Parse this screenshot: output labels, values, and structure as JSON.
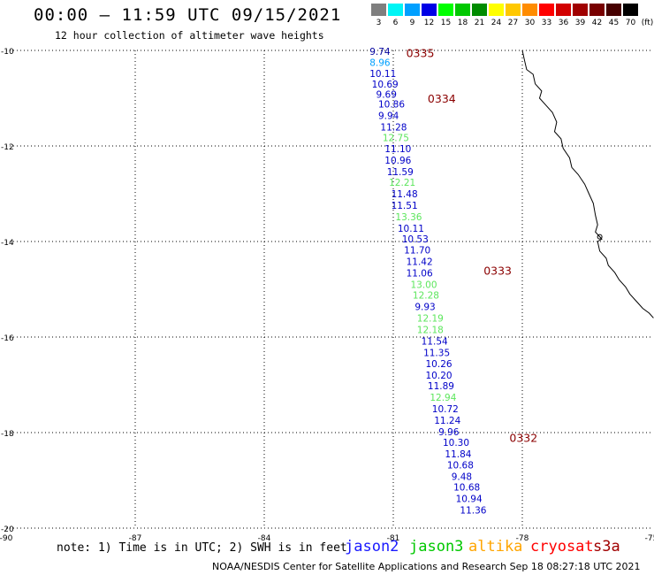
{
  "title": "00:00 – 11:59 UTC 09/15/2021",
  "subtitle": "12 hour collection of altimeter wave heights",
  "color_scale": {
    "labels": [
      "3",
      "6",
      "9",
      "12",
      "15",
      "18",
      "21",
      "24",
      "27",
      "30",
      "33",
      "36",
      "39",
      "42",
      "45",
      "70",
      "(ft)"
    ],
    "colors": [
      "#7f7f7f",
      "#00f5f5",
      "#00a0ff",
      "#0000e6",
      "#00ff00",
      "#00c800",
      "#008c00",
      "#ffff00",
      "#ffc800",
      "#ff8c00",
      "#ff0000",
      "#d20000",
      "#a00000",
      "#780000",
      "#460000",
      "#000000"
    ]
  },
  "axes": {
    "lat_labels": [
      "-10",
      "-12",
      "-14",
      "-16",
      "-18",
      "-20"
    ],
    "lon_labels": [
      "-90",
      "-87",
      "-84",
      "-81",
      "-78",
      "-75"
    ],
    "lat_range": [
      -20,
      -10
    ],
    "lon_range": [
      -90,
      -75
    ]
  },
  "passes": [
    {
      "label": "0335",
      "lon": -80.7,
      "lat": -10.05
    },
    {
      "label": "0334",
      "lon": -80.2,
      "lat": -11.0
    },
    {
      "label": "0333",
      "lon": -78.9,
      "lat": -14.6
    },
    {
      "label": "0332",
      "lon": -78.3,
      "lat": -18.1
    }
  ],
  "observations": [
    {
      "v": "9.74",
      "lon": -81.55,
      "lat": -10.02,
      "c": "#00009c"
    },
    {
      "v": "8.96",
      "lon": -81.55,
      "lat": -10.25,
      "c": "#00a0ff"
    },
    {
      "v": "10.11",
      "lon": -81.55,
      "lat": -10.48,
      "c": "#0000c8"
    },
    {
      "v": "10.69",
      "lon": -81.5,
      "lat": -10.7,
      "c": "#0000c8"
    },
    {
      "v": "9.69",
      "lon": -81.4,
      "lat": -10.92,
      "c": "#0000c8"
    },
    {
      "v": "10.86",
      "lon": -81.35,
      "lat": -11.12,
      "c": "#0000c8"
    },
    {
      "v": "9.94",
      "lon": -81.35,
      "lat": -11.36,
      "c": "#0000c8"
    },
    {
      "v": "11.28",
      "lon": -81.3,
      "lat": -11.6,
      "c": "#0000c8"
    },
    {
      "v": "12.75",
      "lon": -81.25,
      "lat": -11.82,
      "c": "#5ce65c"
    },
    {
      "v": "11.10",
      "lon": -81.2,
      "lat": -12.06,
      "c": "#0000c8"
    },
    {
      "v": "10.96",
      "lon": -81.2,
      "lat": -12.3,
      "c": "#0000c8"
    },
    {
      "v": "11.59",
      "lon": -81.15,
      "lat": -12.54,
      "c": "#0000c8"
    },
    {
      "v": "12.21",
      "lon": -81.1,
      "lat": -12.76,
      "c": "#5ce65c"
    },
    {
      "v": "11.48",
      "lon": -81.05,
      "lat": -13.0,
      "c": "#0000c8"
    },
    {
      "v": "11.51",
      "lon": -81.05,
      "lat": -13.24,
      "c": "#0000c8"
    },
    {
      "v": "13.36",
      "lon": -80.95,
      "lat": -13.48,
      "c": "#5ce65c"
    },
    {
      "v": "10.11",
      "lon": -80.9,
      "lat": -13.72,
      "c": "#0000c8"
    },
    {
      "v": "10.53",
      "lon": -80.8,
      "lat": -13.94,
      "c": "#0000c8"
    },
    {
      "v": "11.70",
      "lon": -80.75,
      "lat": -14.18,
      "c": "#0000c8"
    },
    {
      "v": "11.42",
      "lon": -80.7,
      "lat": -14.42,
      "c": "#0000c8"
    },
    {
      "v": "11.06",
      "lon": -80.7,
      "lat": -14.66,
      "c": "#0000c8"
    },
    {
      "v": "13.00",
      "lon": -80.6,
      "lat": -14.9,
      "c": "#5ce65c"
    },
    {
      "v": "12.28",
      "lon": -80.55,
      "lat": -15.12,
      "c": "#5ce65c"
    },
    {
      "v": "9.93",
      "lon": -80.5,
      "lat": -15.36,
      "c": "#0000c8"
    },
    {
      "v": "12.19",
      "lon": -80.45,
      "lat": -15.6,
      "c": "#5ce65c"
    },
    {
      "v": "12.18",
      "lon": -80.45,
      "lat": -15.84,
      "c": "#5ce65c"
    },
    {
      "v": "11.54",
      "lon": -80.35,
      "lat": -16.08,
      "c": "#0000c8"
    },
    {
      "v": "11.35",
      "lon": -80.3,
      "lat": -16.32,
      "c": "#0000c8"
    },
    {
      "v": "10.26",
      "lon": -80.25,
      "lat": -16.56,
      "c": "#0000c8"
    },
    {
      "v": "10.20",
      "lon": -80.25,
      "lat": -16.8,
      "c": "#0000c8"
    },
    {
      "v": "11.89",
      "lon": -80.2,
      "lat": -17.02,
      "c": "#0000c8"
    },
    {
      "v": "12.94",
      "lon": -80.15,
      "lat": -17.26,
      "c": "#5ce65c"
    },
    {
      "v": "10.72",
      "lon": -80.1,
      "lat": -17.5,
      "c": "#0000c8"
    },
    {
      "v": "11.24",
      "lon": -80.05,
      "lat": -17.74,
      "c": "#0000c8"
    },
    {
      "v": "9.96",
      "lon": -79.95,
      "lat": -17.98,
      "c": "#0000c8"
    },
    {
      "v": "10.30",
      "lon": -79.85,
      "lat": -18.2,
      "c": "#0000c8"
    },
    {
      "v": "11.84",
      "lon": -79.8,
      "lat": -18.44,
      "c": "#0000c8"
    },
    {
      "v": "10.68",
      "lon": -79.75,
      "lat": -18.68,
      "c": "#0000c8"
    },
    {
      "v": "9.48",
      "lon": -79.65,
      "lat": -18.92,
      "c": "#0000c8"
    },
    {
      "v": "10.68",
      "lon": -79.6,
      "lat": -19.14,
      "c": "#0000c8"
    },
    {
      "v": "10.94",
      "lon": -79.55,
      "lat": -19.38,
      "c": "#0000c8"
    },
    {
      "v": "11.36",
      "lon": -79.45,
      "lat": -19.62,
      "c": "#0000c8"
    }
  ],
  "coastline": [
    [
      -78.0,
      -10.0
    ],
    [
      -77.95,
      -10.2
    ],
    [
      -77.9,
      -10.4
    ],
    [
      -77.75,
      -10.5
    ],
    [
      -77.7,
      -10.7
    ],
    [
      -77.55,
      -10.85
    ],
    [
      -77.6,
      -11.0
    ],
    [
      -77.45,
      -11.15
    ],
    [
      -77.3,
      -11.3
    ],
    [
      -77.2,
      -11.5
    ],
    [
      -77.25,
      -11.7
    ],
    [
      -77.1,
      -11.85
    ],
    [
      -77.05,
      -12.05
    ],
    [
      -76.9,
      -12.25
    ],
    [
      -76.85,
      -12.45
    ],
    [
      -76.7,
      -12.6
    ],
    [
      -76.55,
      -12.8
    ],
    [
      -76.45,
      -13.0
    ],
    [
      -76.35,
      -13.2
    ],
    [
      -76.3,
      -13.45
    ],
    [
      -76.25,
      -13.65
    ],
    [
      -76.3,
      -13.8
    ],
    [
      -76.15,
      -13.95
    ],
    [
      -76.25,
      -14.0
    ],
    [
      -76.2,
      -14.2
    ],
    [
      -76.05,
      -14.35
    ],
    [
      -76.0,
      -14.5
    ],
    [
      -75.85,
      -14.65
    ],
    [
      -75.75,
      -14.8
    ],
    [
      -75.6,
      -14.95
    ],
    [
      -75.5,
      -15.1
    ],
    [
      -75.35,
      -15.25
    ],
    [
      -75.2,
      -15.4
    ],
    [
      -75.05,
      -15.5
    ],
    [
      -74.95,
      -15.6
    ]
  ],
  "islands": [
    [
      -76.2,
      -13.9
    ]
  ],
  "footer": {
    "note": "note: 1) Time is in UTC; 2) SWH is in feet",
    "credit": "NOAA/NESDIS Center for Satellite Applications and Research   Sep 18 08:27:18 UTC 2021",
    "legend": [
      {
        "name": "jason2",
        "color": "#1a1aff"
      },
      {
        "name": "jason3",
        "color": "#00c800"
      },
      {
        "name": "altika",
        "color": "#ffa500"
      },
      {
        "name": "cryosat",
        "color": "#ff0000"
      },
      {
        "name": "s3a",
        "color": "#a00000"
      }
    ]
  }
}
